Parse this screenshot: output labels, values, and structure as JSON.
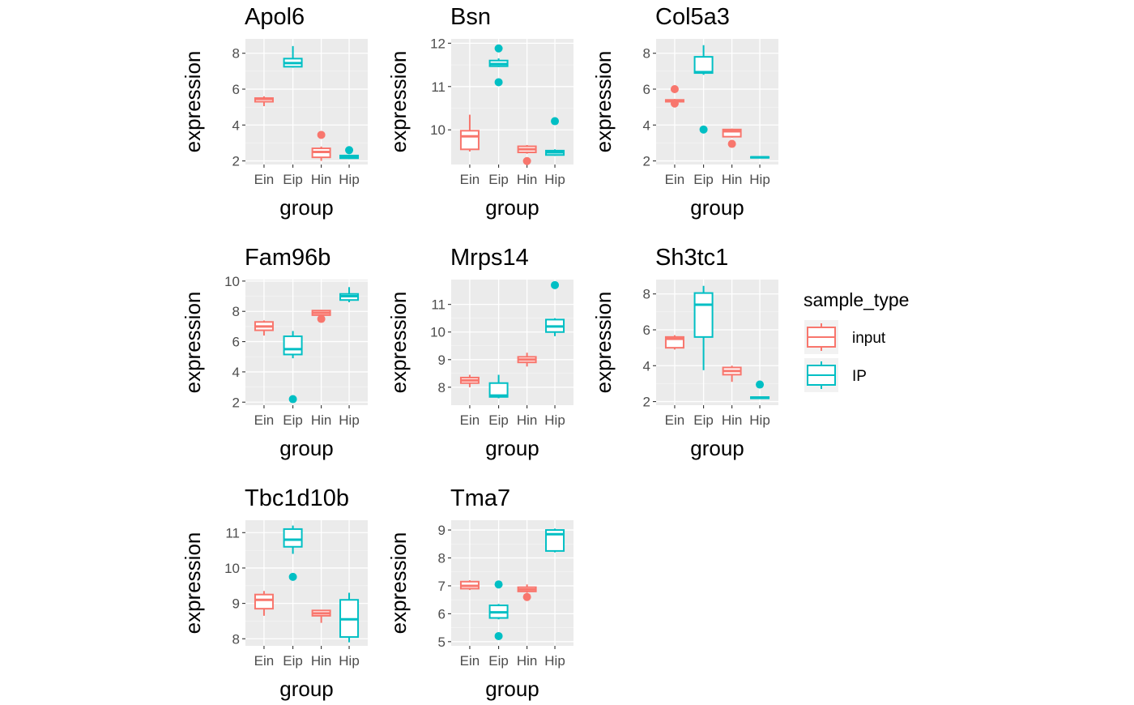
{
  "colors": {
    "input": "#F8766D",
    "IP": "#00BFC4",
    "panel_bg": "#EBEBEB",
    "grid_major": "#FFFFFF",
    "text": "#000000",
    "tick_text": "#4D4D4D"
  },
  "legend": {
    "title": "sample_type",
    "entries": [
      {
        "label": "input",
        "color": "#F8766D"
      },
      {
        "label": "IP",
        "color": "#00BFC4"
      }
    ],
    "placement": "right"
  },
  "chart_data": [
    {
      "type": "boxplot",
      "title": "Apol6",
      "xlabel": "group",
      "ylabel": "expression",
      "categories": [
        "Ein",
        "Eip",
        "Hin",
        "Hip"
      ],
      "ylim": [
        1.8,
        8.8
      ],
      "yticks": [
        2,
        4,
        6,
        8
      ],
      "grid": true,
      "boxes": [
        {
          "group": "Ein",
          "sample_type": "input",
          "lower_whisker": 5.05,
          "q1": 5.3,
          "median": 5.45,
          "q3": 5.5,
          "upper_whisker": 5.6,
          "outliers": []
        },
        {
          "group": "Eip",
          "sample_type": "IP",
          "lower_whisker": 7.2,
          "q1": 7.25,
          "median": 7.45,
          "q3": 7.7,
          "upper_whisker": 8.4,
          "outliers": []
        },
        {
          "group": "Hin",
          "sample_type": "input",
          "lower_whisker": 2.0,
          "q1": 2.2,
          "median": 2.5,
          "q3": 2.7,
          "upper_whisker": 2.8,
          "outliers": [
            3.45
          ]
        },
        {
          "group": "Hip",
          "sample_type": "IP",
          "lower_whisker": 2.1,
          "q1": 2.15,
          "median": 2.2,
          "q3": 2.3,
          "upper_whisker": 2.35,
          "outliers": [
            2.6
          ]
        }
      ]
    },
    {
      "type": "boxplot",
      "title": "Bsn",
      "xlabel": "group",
      "ylabel": "expression",
      "categories": [
        "Ein",
        "Eip",
        "Hin",
        "Hip"
      ],
      "ylim": [
        9.2,
        12.1
      ],
      "yticks": [
        10,
        11,
        12
      ],
      "grid": true,
      "boxes": [
        {
          "group": "Ein",
          "sample_type": "input",
          "lower_whisker": 9.5,
          "q1": 9.55,
          "median": 9.85,
          "q3": 9.98,
          "upper_whisker": 10.35,
          "outliers": []
        },
        {
          "group": "Eip",
          "sample_type": "IP",
          "lower_whisker": 11.45,
          "q1": 11.47,
          "median": 11.52,
          "q3": 11.6,
          "upper_whisker": 11.65,
          "outliers": [
            11.88,
            11.1
          ]
        },
        {
          "group": "Hin",
          "sample_type": "input",
          "lower_whisker": 9.45,
          "q1": 9.48,
          "median": 9.55,
          "q3": 9.62,
          "upper_whisker": 9.65,
          "outliers": [
            9.28
          ]
        },
        {
          "group": "Hip",
          "sample_type": "IP",
          "lower_whisker": 9.4,
          "q1": 9.42,
          "median": 9.48,
          "q3": 9.52,
          "upper_whisker": 9.55,
          "outliers": [
            10.2
          ]
        }
      ]
    },
    {
      "type": "boxplot",
      "title": "Col5a3",
      "xlabel": "group",
      "ylabel": "expression",
      "categories": [
        "Ein",
        "Eip",
        "Hin",
        "Hip"
      ],
      "ylim": [
        1.8,
        8.8
      ],
      "yticks": [
        2,
        4,
        6,
        8
      ],
      "grid": true,
      "boxes": [
        {
          "group": "Ein",
          "sample_type": "input",
          "lower_whisker": 5.25,
          "q1": 5.3,
          "median": 5.35,
          "q3": 5.4,
          "upper_whisker": 5.45,
          "outliers": [
            6.0,
            5.2
          ]
        },
        {
          "group": "Eip",
          "sample_type": "IP",
          "lower_whisker": 6.8,
          "q1": 6.9,
          "median": 6.95,
          "q3": 7.8,
          "upper_whisker": 8.45,
          "outliers": [
            3.75
          ]
        },
        {
          "group": "Hin",
          "sample_type": "input",
          "lower_whisker": 3.3,
          "q1": 3.35,
          "median": 3.65,
          "q3": 3.75,
          "upper_whisker": 3.8,
          "outliers": [
            2.95
          ]
        },
        {
          "group": "Hip",
          "sample_type": "IP",
          "lower_whisker": 2.15,
          "q1": 2.18,
          "median": 2.2,
          "q3": 2.22,
          "upper_whisker": 2.25,
          "outliers": []
        }
      ]
    },
    {
      "type": "boxplot",
      "title": "Fam96b",
      "xlabel": "group",
      "ylabel": "expression",
      "categories": [
        "Ein",
        "Eip",
        "Hin",
        "Hip"
      ],
      "ylim": [
        1.8,
        10.1
      ],
      "yticks": [
        2,
        4,
        6,
        8,
        10
      ],
      "grid": true,
      "boxes": [
        {
          "group": "Ein",
          "sample_type": "input",
          "lower_whisker": 6.4,
          "q1": 6.75,
          "median": 7.0,
          "q3": 7.3,
          "upper_whisker": 7.4,
          "outliers": []
        },
        {
          "group": "Eip",
          "sample_type": "IP",
          "lower_whisker": 4.9,
          "q1": 5.15,
          "median": 5.5,
          "q3": 6.35,
          "upper_whisker": 6.7,
          "outliers": [
            2.2
          ]
        },
        {
          "group": "Hin",
          "sample_type": "input",
          "lower_whisker": 7.65,
          "q1": 7.75,
          "median": 7.9,
          "q3": 8.05,
          "upper_whisker": 8.1,
          "outliers": [
            7.5
          ]
        },
        {
          "group": "Hip",
          "sample_type": "IP",
          "lower_whisker": 8.6,
          "q1": 8.75,
          "median": 9.0,
          "q3": 9.15,
          "upper_whisker": 9.6,
          "outliers": []
        }
      ]
    },
    {
      "type": "boxplot",
      "title": "Mrps14",
      "xlabel": "group",
      "ylabel": "expression",
      "categories": [
        "Ein",
        "Eip",
        "Hin",
        "Hip"
      ],
      "ylim": [
        7.35,
        11.9
      ],
      "yticks": [
        8,
        9,
        10,
        11
      ],
      "grid": true,
      "boxes": [
        {
          "group": "Ein",
          "sample_type": "input",
          "lower_whisker": 8.0,
          "q1": 8.15,
          "median": 8.25,
          "q3": 8.35,
          "upper_whisker": 8.45,
          "outliers": []
        },
        {
          "group": "Eip",
          "sample_type": "IP",
          "lower_whisker": 7.6,
          "q1": 7.65,
          "median": 7.7,
          "q3": 8.15,
          "upper_whisker": 8.45,
          "outliers": []
        },
        {
          "group": "Hin",
          "sample_type": "input",
          "lower_whisker": 8.75,
          "q1": 8.9,
          "median": 9.0,
          "q3": 9.1,
          "upper_whisker": 9.25,
          "outliers": []
        },
        {
          "group": "Hip",
          "sample_type": "IP",
          "lower_whisker": 9.85,
          "q1": 10.0,
          "median": 10.2,
          "q3": 10.45,
          "upper_whisker": 10.5,
          "outliers": [
            11.7
          ]
        }
      ]
    },
    {
      "type": "boxplot",
      "title": "Sh3tc1",
      "xlabel": "group",
      "ylabel": "expression",
      "categories": [
        "Ein",
        "Eip",
        "Hin",
        "Hip"
      ],
      "ylim": [
        1.8,
        8.8
      ],
      "yticks": [
        2,
        4,
        6,
        8
      ],
      "grid": true,
      "boxes": [
        {
          "group": "Ein",
          "sample_type": "input",
          "lower_whisker": 4.9,
          "q1": 5.0,
          "median": 5.5,
          "q3": 5.6,
          "upper_whisker": 5.7,
          "outliers": []
        },
        {
          "group": "Eip",
          "sample_type": "IP",
          "lower_whisker": 3.75,
          "q1": 5.6,
          "median": 7.4,
          "q3": 8.05,
          "upper_whisker": 8.45,
          "outliers": []
        },
        {
          "group": "Hin",
          "sample_type": "input",
          "lower_whisker": 3.1,
          "q1": 3.5,
          "median": 3.7,
          "q3": 3.9,
          "upper_whisker": 4.0,
          "outliers": []
        },
        {
          "group": "Hip",
          "sample_type": "IP",
          "lower_whisker": 2.15,
          "q1": 2.18,
          "median": 2.22,
          "q3": 2.25,
          "upper_whisker": 2.28,
          "outliers": [
            2.95
          ]
        }
      ]
    },
    {
      "type": "boxplot",
      "title": "Tbc1d10b",
      "xlabel": "group",
      "ylabel": "expression",
      "categories": [
        "Ein",
        "Eip",
        "Hin",
        "Hip"
      ],
      "ylim": [
        7.8,
        11.35
      ],
      "yticks": [
        8,
        9,
        10,
        11
      ],
      "grid": true,
      "boxes": [
        {
          "group": "Ein",
          "sample_type": "input",
          "lower_whisker": 8.65,
          "q1": 8.85,
          "median": 9.1,
          "q3": 9.25,
          "upper_whisker": 9.35,
          "outliers": []
        },
        {
          "group": "Eip",
          "sample_type": "IP",
          "lower_whisker": 10.4,
          "q1": 10.6,
          "median": 10.8,
          "q3": 11.1,
          "upper_whisker": 11.2,
          "outliers": [
            9.75
          ]
        },
        {
          "group": "Hin",
          "sample_type": "input",
          "lower_whisker": 8.45,
          "q1": 8.65,
          "median": 8.72,
          "q3": 8.8,
          "upper_whisker": 8.82,
          "outliers": []
        },
        {
          "group": "Hip",
          "sample_type": "IP",
          "lower_whisker": 7.9,
          "q1": 8.05,
          "median": 8.55,
          "q3": 9.1,
          "upper_whisker": 9.3,
          "outliers": []
        }
      ]
    },
    {
      "type": "boxplot",
      "title": "Tma7",
      "xlabel": "group",
      "ylabel": "expression",
      "categories": [
        "Ein",
        "Eip",
        "Hin",
        "Hip"
      ],
      "ylim": [
        4.85,
        9.35
      ],
      "yticks": [
        5,
        6,
        7,
        8,
        9
      ],
      "grid": true,
      "boxes": [
        {
          "group": "Ein",
          "sample_type": "input",
          "lower_whisker": 6.85,
          "q1": 6.9,
          "median": 7.0,
          "q3": 7.15,
          "upper_whisker": 7.2,
          "outliers": []
        },
        {
          "group": "Eip",
          "sample_type": "IP",
          "lower_whisker": 5.8,
          "q1": 5.85,
          "median": 6.05,
          "q3": 6.3,
          "upper_whisker": 6.35,
          "outliers": [
            7.05,
            5.2
          ]
        },
        {
          "group": "Hin",
          "sample_type": "input",
          "lower_whisker": 6.75,
          "q1": 6.8,
          "median": 6.87,
          "q3": 6.95,
          "upper_whisker": 7.05,
          "outliers": [
            6.6
          ]
        },
        {
          "group": "Hip",
          "sample_type": "IP",
          "lower_whisker": 8.2,
          "q1": 8.25,
          "median": 8.85,
          "q3": 9.0,
          "upper_whisker": 9.05,
          "outliers": []
        }
      ]
    }
  ]
}
